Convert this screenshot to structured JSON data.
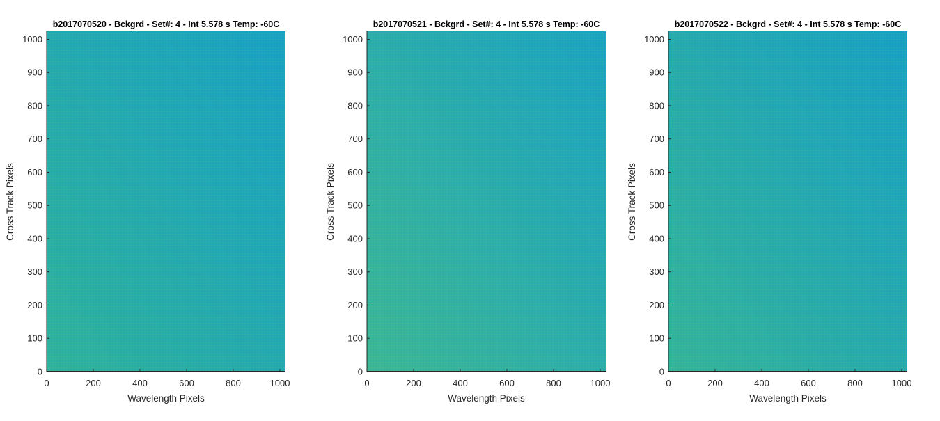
{
  "figure": {
    "panels": [
      {
        "title": "b2017070520 - Bckgrd - Set#: 4 - Int 5.578 s Temp: -60C",
        "xlabel": "Wavelength Pixels",
        "ylabel": "Cross Track Pixels"
      },
      {
        "title": "b2017070521 - Bckgrd - Set#: 4 - Int 5.578 s Temp: -60C",
        "xlabel": "Wavelength Pixels",
        "ylabel": "Cross Track Pixels"
      },
      {
        "title": "b2017070522 - Bckgrd - Set#: 4 - Int 5.578 s Temp: -60C",
        "xlabel": "Wavelength Pixels",
        "ylabel": "Cross Track Pixels"
      }
    ]
  },
  "chart_data": [
    {
      "type": "heatmap",
      "title": "b2017070520 - Bckgrd - Set#: 4 - Int 5.578 s Temp: -60C",
      "xlabel": "Wavelength Pixels",
      "ylabel": "Cross Track Pixels",
      "xlim": [
        0,
        1024
      ],
      "ylim": [
        0,
        1024
      ],
      "xticks": [
        0,
        200,
        400,
        600,
        800,
        1000
      ],
      "yticks": [
        0,
        100,
        200,
        300,
        400,
        500,
        600,
        700,
        800,
        900,
        1000
      ],
      "colormap": "parula",
      "color_left": "#2eb29c",
      "color_right": "#18a1c4",
      "grid": false
    },
    {
      "type": "heatmap",
      "title": "b2017070521 - Bckgrd - Set#: 4 - Int 5.578 s Temp: -60C",
      "xlabel": "Wavelength Pixels",
      "ylabel": "Cross Track Pixels",
      "xlim": [
        0,
        1024
      ],
      "ylim": [
        0,
        1024
      ],
      "xticks": [
        0,
        200,
        400,
        600,
        800,
        1000
      ],
      "yticks": [
        0,
        100,
        200,
        300,
        400,
        500,
        600,
        700,
        800,
        900,
        1000
      ],
      "colormap": "parula",
      "color_left": "#3cb795",
      "color_right": "#1aa3c2",
      "grid": false
    },
    {
      "type": "heatmap",
      "title": "b2017070522 - Bckgrd - Set#: 4 - Int 5.578 s Temp: -60C",
      "xlabel": "Wavelength Pixels",
      "ylabel": "Cross Track Pixels",
      "xlim": [
        0,
        1024
      ],
      "ylim": [
        0,
        1024
      ],
      "xticks": [
        0,
        200,
        400,
        600,
        800,
        1000
      ],
      "yticks": [
        0,
        100,
        200,
        300,
        400,
        500,
        600,
        700,
        800,
        900,
        1000
      ],
      "colormap": "parula",
      "color_left": "#34b499",
      "color_right": "#17a0c4",
      "grid": false
    }
  ]
}
